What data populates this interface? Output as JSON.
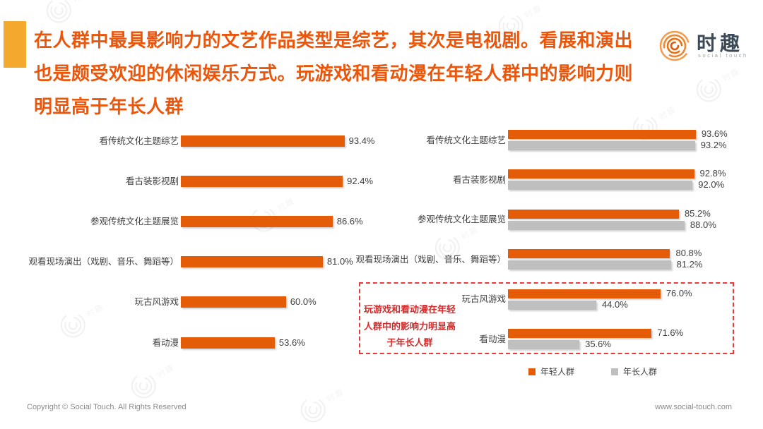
{
  "header": {
    "accent_block_color": "#F5A82E",
    "title_color": "#EA560B",
    "title_lines": [
      "在人群中最具影响力的文艺作品类型是综艺，其次是电视剧。看展和演出",
      "也是颇受欢迎的休闲娱乐方式。玩游戏和看动漫在年轻人群中的影响力则",
      "明显高于年长人群"
    ]
  },
  "logo": {
    "brand": "时趣",
    "subtitle": "social touch",
    "icon": "spiral-rings-icon",
    "icon_color": "#E8700F"
  },
  "chart_data": [
    {
      "type": "bar",
      "orientation": "horizontal",
      "bar_color": "#E55C08",
      "unit": "%",
      "xlim": [
        0,
        100
      ],
      "categories": [
        "看传统文化主题综艺",
        "看古装影视剧",
        "参观传统文化主题展览",
        "观看现场演出（戏剧、音乐、舞蹈等）",
        "玩古风游戏",
        "看动漫"
      ],
      "values": [
        93.4,
        92.4,
        86.6,
        81.0,
        60.0,
        53.6
      ],
      "value_labels": [
        "93.4%",
        "92.4%",
        "86.6%",
        "81.0%",
        "60.0%",
        "53.6%"
      ]
    },
    {
      "type": "bar",
      "orientation": "horizontal",
      "unit": "%",
      "xlim": [
        0,
        100
      ],
      "legend_position": "bottom-right",
      "categories": [
        "看传统文化主题综艺",
        "看古装影视剧",
        "参观传统文化主题展览",
        "观看现场演出（戏剧、音乐、舞蹈等）",
        "玩古风游戏",
        "看动漫"
      ],
      "series": [
        {
          "name": "年轻人群",
          "color": "#E55C08",
          "values": [
            93.6,
            92.8,
            85.2,
            80.8,
            76.0,
            71.6
          ],
          "value_labels": [
            "93.6%",
            "92.8%",
            "85.2%",
            "80.8%",
            "76.0%",
            "71.6%"
          ]
        },
        {
          "name": "年长人群",
          "color": "#BFBFBF",
          "values": [
            93.2,
            92.0,
            88.0,
            81.2,
            44.0,
            35.6
          ],
          "value_labels": [
            "93.2%",
            "92.0%",
            "88.0%",
            "81.2%",
            "44.0%",
            "35.6%"
          ]
        }
      ]
    }
  ],
  "annotation": {
    "text_color": "#D42A2A",
    "box_border_color": "#E83A3A",
    "lines": [
      "玩游戏和看动漫在年轻",
      "人群中的影响力明显高",
      "于年长人群"
    ]
  },
  "footer": {
    "copyright": "Copyright © Social Touch. All Rights Reserved",
    "website": "www.social-touch.com"
  }
}
